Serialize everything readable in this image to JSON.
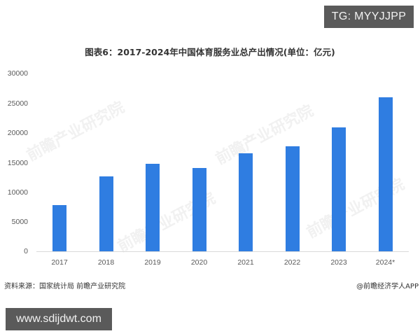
{
  "overlay": {
    "top_badge": "TG: MYYJJPP",
    "bottom_badge": "www.sdijdwt.com"
  },
  "chart_data": {
    "type": "bar",
    "title": "图表6：2017-2024年中国体育服务业总产出情况(单位：亿元)",
    "xlabel": "",
    "ylabel": "",
    "categories": [
      "2017",
      "2018",
      "2019",
      "2020",
      "2021",
      "2022",
      "2023",
      "2024*"
    ],
    "values": [
      7800,
      12600,
      14800,
      14100,
      16500,
      17700,
      20900,
      26000
    ],
    "yticks": [
      "0",
      "5000",
      "10000",
      "15000",
      "20000",
      "25000",
      "30000"
    ],
    "ylim": [
      0,
      30000
    ],
    "grid": false,
    "legend": "none",
    "bar_color": "#2f7de1",
    "source": "资料来源：国家统计局 前瞻产业研究院",
    "credit": "@前瞻经济学人APP",
    "watermark": "前瞻产业研究院"
  }
}
